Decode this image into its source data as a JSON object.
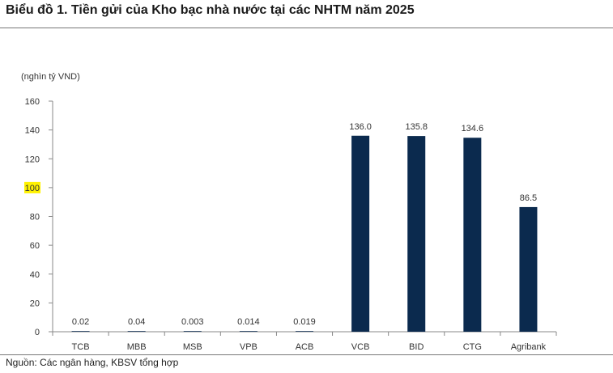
{
  "title": "Biểu đồ 1. Tiền gửi của Kho bạc nhà nước tại các NHTM năm 2025",
  "source": "Nguồn: Các ngân hàng, KBSV tổng hợp",
  "colors": {
    "bar": "#0b2a4e",
    "highlight": "#fff200",
    "axis": "#888888"
  },
  "chart_data": {
    "type": "bar",
    "ylabel": "(nghìn tỷ VND)",
    "ylim": [
      0,
      160
    ],
    "yticks": [
      0,
      20,
      40,
      60,
      80,
      100,
      120,
      140,
      160
    ],
    "highlighted_tick": 100,
    "categories": [
      "TCB",
      "MBB",
      "MSB",
      "VPB",
      "ACB",
      "VCB",
      "BID",
      "CTG",
      "Agribank"
    ],
    "values": [
      0.02,
      0.04,
      0.003,
      0.014,
      0.019,
      136.0,
      135.8,
      134.6,
      86.5
    ],
    "data_labels": [
      "0.02",
      "0.04",
      "0.003",
      "0.014",
      "0.019",
      "136.0",
      "135.8",
      "134.6",
      "86.5"
    ],
    "grid": false,
    "legend": "none"
  }
}
